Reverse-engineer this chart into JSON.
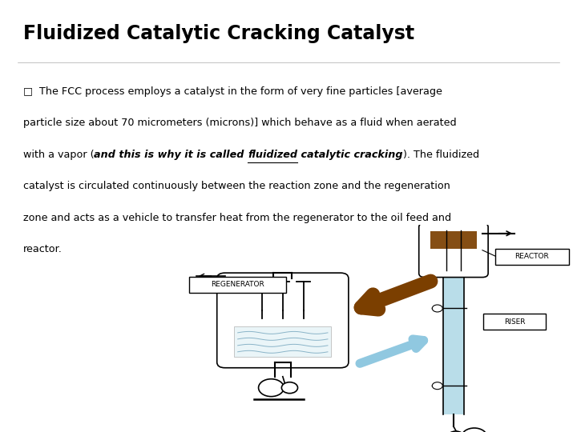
{
  "title": "Fluidized Catalytic Cracking Catalyst",
  "title_fontsize": 17,
  "bg_color": "#ffffff",
  "text_color": "#000000",
  "body_fontsize": 9.2,
  "label_reactor": "REACTOR",
  "label_regenerator": "REGENERATOR",
  "label_riser": "RISER",
  "brown_color": "#7B3F00",
  "light_blue_color": "#ADD8E6",
  "body_text_normal1": "□  The FCC process employs a catalyst in the form of very fine particles [average",
  "body_text_normal2": "particle size about 70 micrometers (microns)] which behave as a fluid when aerated",
  "body_text_pre": "with a vapor (",
  "body_text_bold1": "and this is why it is called ",
  "body_text_bold_ul": "fluidized",
  "body_text_bold2": " catalytic cracking",
  "body_text_post": "). The fluidized",
  "body_text_normal3": "catalyst is circulated continuously between the reaction zone and the regeneration",
  "body_text_normal4": "zone and acts as a vehicle to transfer heat from the regenerator to the oil feed and",
  "body_text_normal5": "reactor."
}
